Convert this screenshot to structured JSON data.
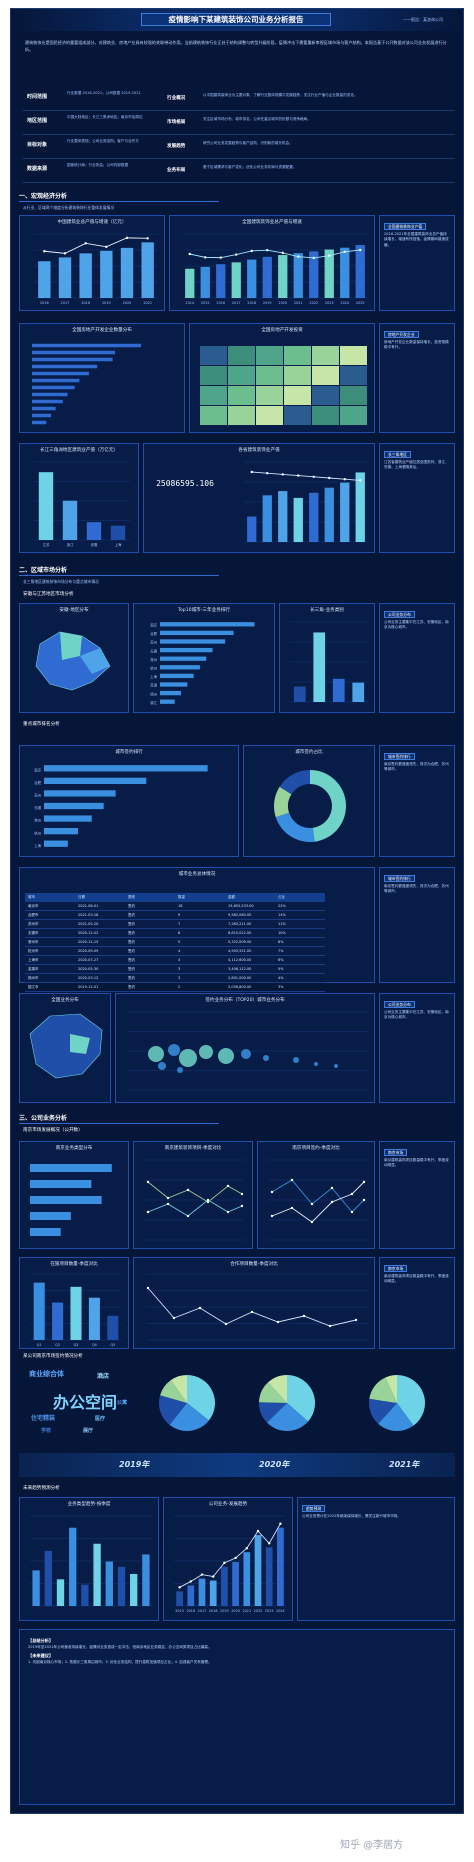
{
  "header": {
    "title": "疫情影响下某建筑装饰公司业务分析报告",
    "meta": "——报告：某咨询公司"
  },
  "intro": "建筑装饰业是国民经济的重要组成部分，对建筑业、房地产业具有较强的关联带动作用。当前建筑装饰行业正处于结构调整与转型升级阶段，疫情冲击下需要重新审视区域市场与客户结构，本报告基于公开数据对该公司业务发展进行分析。",
  "kv": [
    {
      "k": "时间范围",
      "v": "行业数据 2016-2021；公司数据 2019-2021"
    },
    {
      "k": "地区范围",
      "v": "中国大陆地区；长江三角洲地区；南京市及周边"
    },
    {
      "k": "目标对象",
      "v": "行业整体表现；公司业务结构；客户与合作方"
    },
    {
      "k": "数据来源",
      "v": "国家统计局；行业协会；公司内部数据"
    }
  ],
  "info": [
    {
      "k": "行业概况",
      "v": "以中国建筑装饰业为主要对象，了解行业整体规模与发展趋势，关注行业产值与企业数量的变化。"
    },
    {
      "k": "市场格局",
      "v": "关注区域市场分布、城市排名、公司在重点城市的份额与竞争格局。"
    },
    {
      "k": "发展趋势",
      "v": "研究公司业务发展趋势与客户结构，识别新的增长机会。"
    },
    {
      "k": "业务布局",
      "v": "基于区域需求与客户变化，优化公司业务布局与资源配置。"
    }
  ],
  "sections": [
    {
      "title": "一、宏观经济分析",
      "sub": "从行业、区域两个维度分析建筑装饰行业整体发展情况"
    },
    {
      "title": "二、区域市场分析",
      "sub": "长三角地区建筑装饰市场分布与重点城市情况"
    },
    {
      "title": "三、公司业务分析",
      "sub": "公司近三年业务结构与客户分布"
    }
  ],
  "sub_labels": {
    "s1": "安徽与江苏地区市场分析",
    "s2": "重点城市排名分析",
    "s3": "南京市场发展概况（公开数）",
    "s4": "某公司南京市场签约情况分析",
    "s5": "未来趋势预测分析"
  },
  "panel_titles": {
    "p1": "中国建筑业总产值与增速（亿元）",
    "p2": "全国建筑装饰业总产值与增速",
    "p3": "全国房地产开发企业数量分布",
    "p4": "全国房地产开发投资",
    "p5": "长江三角洲地区建筑业产值（万亿元）",
    "p6": "各省建筑装饰业产值",
    "p7": "安徽-地区分布",
    "p8": "Top10城市-三年业务排行",
    "p9": "长三角-业务类别",
    "p10": "城市签约排行",
    "p11": "城市签约占比",
    "p12": "城市业务总体情况",
    "p13": "全国业务分布",
    "p14": "签约业务分布（TOP20）城市业务分布",
    "p15": "南京业务类型分布",
    "p16": "南京建筑装饰项目-季度对比",
    "p17": "在施项目数量-季度对比",
    "p18": "南京项目签约-季度对比",
    "p19": "合作项目数量-季度对比",
    "p20": "业务类型趋势-按季度",
    "p21": "公司业务-发展趋势"
  },
  "big_number": "25086595.106",
  "notes": {
    "n1": {
      "h": "全国建筑装饰业产值",
      "t": "2016-2021年全国建筑装饰业总产值持续增长，增速有所回落，疫情期间增速放缓。"
    },
    "n2": {
      "h": "房地产开发企业",
      "t": "房地产开发企业数量保持增长，投资规模稳中有升。"
    },
    "n3": {
      "h": "长三角地区",
      "t": "江苏省建筑业产值位居全国前列，浙江、安徽、上海紧随其后。"
    },
    "n4": {
      "h": "公司业务分布",
      "t": "公司业务主要集中在江苏、安徽地区，南京为核心城市。"
    },
    "n5": {
      "h": "城市签约排行",
      "t": "南京签约额遥遥领先，其次为合肥、苏州等城市。"
    },
    "n6": {
      "h": "南京市场",
      "t": "南京建筑装饰项目数量稳中有升，季度波动明显。"
    },
    "n7": {
      "h": "趋势预测",
      "t": "公司业务预计在2022年继续保持增长，需关注新兴城市市场。"
    }
  },
  "years": [
    "2019年",
    "2020年",
    "2021年"
  ],
  "wordcloud": [
    "办公空间",
    "商业综合体",
    "酒店",
    "住宅精装",
    "医疗",
    "学校",
    "展厅",
    "公寓"
  ],
  "final": {
    "h1": "【总结分析】",
    "t1": "2019年至2021年公司营收持续增长，疫情对业务造成一定冲击，但南京地区业务稳定，办公空间类项目占比最高。",
    "h2": "【未来建议】",
    "t2": "1. 巩固南京核心市场；2. 拓展长三角周边城市；3. 优化业务结构，提升高附加值项目占比；4. 加强客户关系管理。"
  },
  "table": {
    "headers": [
      "城市",
      "日期",
      "类别",
      "数量",
      "金额",
      "占比"
    ],
    "rows": [
      [
        "南京市",
        "2021-06-01",
        "签约",
        "18",
        "15,653,533.00",
        "22%"
      ],
      [
        "合肥市",
        "2021-03-18",
        "签约",
        "9",
        "9,562,080.00",
        "14%"
      ],
      [
        "苏州市",
        "2021-05-20",
        "签约",
        "7",
        "7,263,211.00",
        "11%"
      ],
      [
        "无锡市",
        "2020-12-02",
        "签约",
        "6",
        "6,810,022.00",
        "10%"
      ],
      [
        "常州市",
        "2020-11-15",
        "签约",
        "5",
        "5,322,009.00",
        "8%"
      ],
      [
        "杭州市",
        "2020-09-09",
        "签约",
        "4",
        "4,903,551.00",
        "7%"
      ],
      [
        "上海市",
        "2020-07-27",
        "签约",
        "4",
        "4,112,600.00",
        "6%"
      ],
      [
        "芜湖市",
        "2020-05-30",
        "签约",
        "3",
        "3,406,112.00",
        "5%"
      ],
      [
        "扬州市",
        "2020-03-12",
        "签约",
        "3",
        "2,801,000.00",
        "4%"
      ],
      [
        "镇江市",
        "2019-12-01",
        "签约",
        "2",
        "2,056,800.00",
        "3%"
      ]
    ]
  },
  "chart_data": [
    {
      "type": "bar",
      "title": "中国建筑业总产值与增速（亿元）",
      "categories": [
        "2016",
        "2017",
        "2018",
        "2019",
        "2020",
        "2021"
      ],
      "values": [
        193567,
        213944,
        235086,
        248446,
        263947,
        293079
      ]
    },
    {
      "type": "bar",
      "title": "全国建筑装饰业总产值与增速",
      "categories": [
        "2014",
        "2015",
        "2016",
        "2017",
        "2018",
        "2019",
        "2020",
        "2021",
        "2022",
        "2023",
        "2024",
        "2025"
      ],
      "values": [
        3.2,
        3.4,
        3.7,
        3.9,
        4.2,
        4.5,
        4.7,
        4.9,
        5.1,
        5.3,
        5.5,
        5.8
      ]
    },
    {
      "type": "bar",
      "title": "长江三角洲地区建筑业产值（万亿元）",
      "categories": [
        "江苏",
        "浙江",
        "安徽",
        "上海"
      ],
      "values": [
        3.8,
        2.2,
        1.0,
        0.8
      ]
    },
    {
      "type": "bar",
      "title": "城市签约排行",
      "categories": [
        "南京",
        "合肥",
        "苏州",
        "无锡",
        "常州",
        "杭州",
        "上海"
      ],
      "values": [
        96,
        60,
        42,
        35,
        28,
        20,
        14
      ]
    },
    {
      "type": "pie",
      "title": "城市签约占比",
      "categories": [
        "南京",
        "合肥",
        "苏州",
        "其他"
      ],
      "values": [
        48,
        22,
        14,
        16
      ]
    },
    {
      "type": "bar",
      "title": "在施项目数量-季度对比",
      "categories": [
        "Q1",
        "Q2",
        "Q3",
        "Q4",
        "Q5"
      ],
      "values": [
        95,
        62,
        88,
        70,
        40
      ]
    },
    {
      "type": "bar",
      "title": "公司业务-发展趋势",
      "categories": [
        "2015",
        "2016",
        "2017",
        "2018",
        "2019",
        "2020",
        "2021",
        "2022",
        "2023",
        "2024"
      ],
      "values": [
        300,
        420,
        560,
        520,
        800,
        900,
        1100,
        1450,
        1200,
        1600
      ]
    }
  ]
}
